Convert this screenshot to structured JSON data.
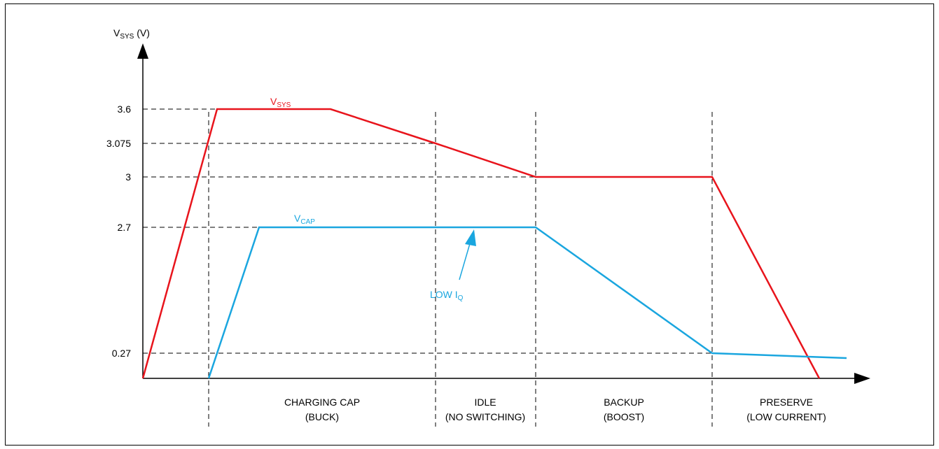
{
  "axis": {
    "y_title": "VSYS (V)",
    "y_title_main": "V",
    "y_title_sub": "SYS",
    "y_title_unit": " (V)"
  },
  "levels": [
    {
      "label": "3.6",
      "value": 3.6
    },
    {
      "label": "3.075",
      "value": 3.075
    },
    {
      "label": "3",
      "value": 3.0
    },
    {
      "label": "2.7",
      "value": 2.7
    },
    {
      "label": "0.27",
      "value": 0.27
    }
  ],
  "curves": {
    "vsys": {
      "label_main": "V",
      "label_sub": "SYS",
      "label": "VSYS",
      "color": "#e8141c",
      "points": [
        [
          0,
          0
        ],
        [
          0.5,
          3.6
        ],
        [
          1.4,
          3.6
        ],
        [
          2.4,
          3.075
        ],
        [
          3.3,
          3.0
        ],
        [
          4.9,
          3.0
        ],
        [
          5.85,
          0
        ]
      ]
    },
    "vcap": {
      "label_main": "V",
      "label_sub": "CAP",
      "label": "VCAP",
      "color": "#1aa6df",
      "points": [
        [
          0.6,
          0
        ],
        [
          1.05,
          2.7
        ],
        [
          3.3,
          2.7
        ],
        [
          4.9,
          0.27
        ],
        [
          6.3,
          0.22
        ]
      ]
    }
  },
  "annotation": {
    "text_main": "LOW I",
    "text_sub": "Q",
    "text": "LOW IQ",
    "color": "#1aa6df"
  },
  "phases": [
    {
      "line1": "CHARGING CAP",
      "line2": "(BUCK)"
    },
    {
      "line1": "IDLE",
      "line2": "(NO SWITCHING)"
    },
    {
      "line1": "BACKUP",
      "line2": "(BOOST)"
    },
    {
      "line1": "PRESERVE",
      "line2": "(LOW CURRENT)"
    }
  ]
}
